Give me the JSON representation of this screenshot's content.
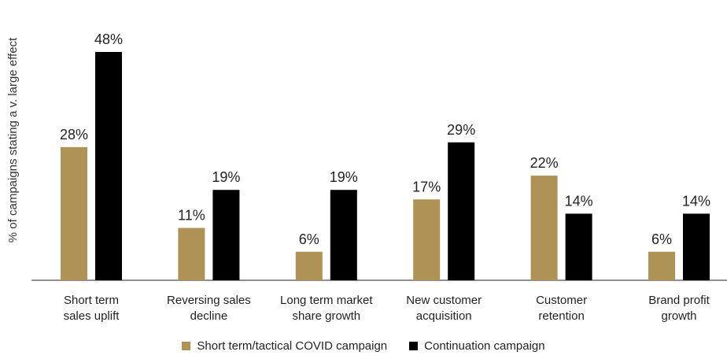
{
  "chart_data": {
    "type": "bar",
    "ylabel": "% of campaigns stating a v. large effect",
    "xlabel": "",
    "categories": [
      [
        "Short term",
        "sales uplift"
      ],
      [
        "Reversing sales",
        "decline"
      ],
      [
        "Long term market",
        "share growth"
      ],
      [
        "New customer",
        "acquisition"
      ],
      [
        "Customer",
        "retention"
      ],
      [
        "Brand profit",
        "growth"
      ]
    ],
    "series": [
      {
        "name": "Short term/tactical COVID campaign",
        "color": "#ae9256",
        "values": [
          28,
          11,
          6,
          17,
          22,
          6
        ]
      },
      {
        "name": "Continuation campaign",
        "color": "#000000",
        "values": [
          48,
          19,
          19,
          29,
          14,
          14
        ]
      }
    ],
    "value_suffix": "%",
    "ylim": [
      0,
      48
    ],
    "grid": false,
    "legend_position": "bottom"
  }
}
